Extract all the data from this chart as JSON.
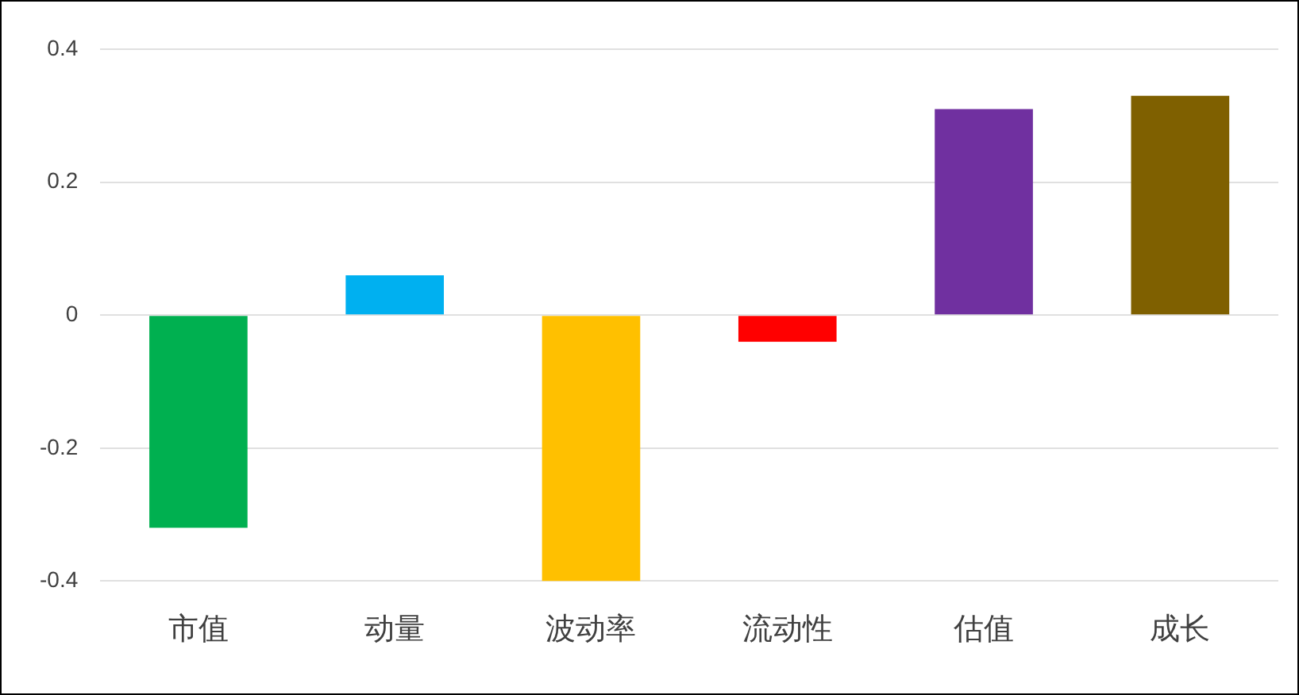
{
  "chart_data": {
    "type": "bar",
    "categories": [
      "市值",
      "动量",
      "波动率",
      "流动性",
      "估值",
      "成长"
    ],
    "values": [
      -0.32,
      0.06,
      -0.4,
      -0.04,
      0.31,
      0.33
    ],
    "colors": [
      "#00b050",
      "#00b0f0",
      "#ffc000",
      "#ff0000",
      "#7030a0",
      "#7f6000"
    ],
    "ylim": [
      -0.4,
      0.4
    ],
    "yticks": [
      -0.4,
      -0.2,
      0,
      0.2,
      0.4
    ],
    "grid": "y",
    "legend": false
  }
}
